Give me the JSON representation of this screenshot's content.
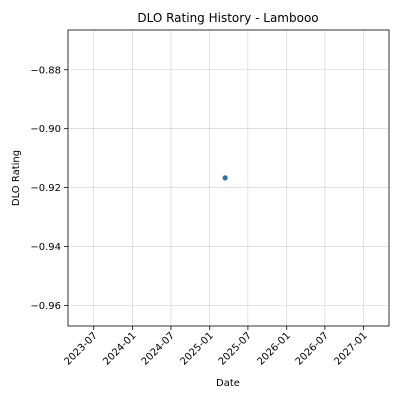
{
  "chart_data": {
    "type": "scatter",
    "title": "DLO Rating History - Lambooo",
    "xlabel": "Date",
    "ylabel": "DLO Rating",
    "x_ticks": [
      "2023-07",
      "2024-01",
      "2024-07",
      "2025-01",
      "2025-07",
      "2026-01",
      "2026-07",
      "2027-01"
    ],
    "y_ticks": [
      -0.88,
      -0.9,
      -0.92,
      -0.94,
      -0.96
    ],
    "y_tick_labels": [
      "−0.88",
      "−0.90",
      "−0.92",
      "−0.94",
      "−0.96"
    ],
    "xlim": [
      "2023-03-01",
      "2027-05-01"
    ],
    "ylim": [
      -0.967,
      -0.8665
    ],
    "grid": true,
    "series": [
      {
        "color": "#1f77b4",
        "points": [
          {
            "x": "2025-03-15",
            "y": -0.9167
          }
        ]
      }
    ]
  }
}
